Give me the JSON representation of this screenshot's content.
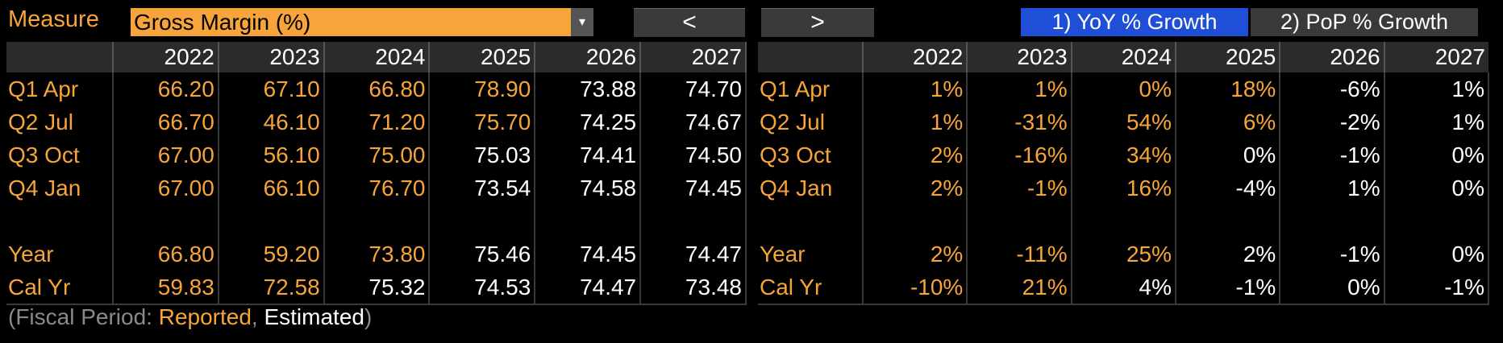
{
  "measure": {
    "label": "Measure",
    "selected": "Gross Margin (%)",
    "dropdown_arrow": "▾"
  },
  "nav": {
    "prev": "<",
    "next": ">"
  },
  "modes": {
    "yoy": "1) YoY % Growth",
    "pop": "2) PoP % Growth"
  },
  "colors": {
    "reported": "#f7a43a",
    "estimated": "#ffffff",
    "active_mode": "#1f4fd6"
  },
  "years": [
    "2022",
    "2023",
    "2024",
    "2025",
    "2026",
    "2027"
  ],
  "left_rows": [
    {
      "label": "Q1 Apr",
      "values": [
        "66.20",
        "67.10",
        "66.80",
        "78.90",
        "73.88",
        "74.70"
      ],
      "reported": 4
    },
    {
      "label": "Q2 Jul",
      "values": [
        "66.70",
        "46.10",
        "71.20",
        "75.70",
        "74.25",
        "74.67"
      ],
      "reported": 4
    },
    {
      "label": "Q3 Oct",
      "values": [
        "67.00",
        "56.10",
        "75.00",
        "75.03",
        "74.41",
        "74.50"
      ],
      "reported": 3
    },
    {
      "label": "Q4 Jan",
      "values": [
        "67.00",
        "66.10",
        "76.70",
        "73.54",
        "74.58",
        "74.45"
      ],
      "reported": 3
    },
    {
      "label": "",
      "values": [
        "",
        "",
        "",
        "",
        "",
        ""
      ],
      "reported": 0
    },
    {
      "label": "Year",
      "values": [
        "66.80",
        "59.20",
        "73.80",
        "75.46",
        "74.45",
        "74.47"
      ],
      "reported": 3
    },
    {
      "label": "Cal Yr",
      "values": [
        "59.83",
        "72.58",
        "75.32",
        "74.53",
        "74.47",
        "73.48"
      ],
      "reported": 2
    }
  ],
  "right_rows": [
    {
      "label": "Q1 Apr",
      "values": [
        "1%",
        "1%",
        "0%",
        "18%",
        "-6%",
        "1%"
      ],
      "reported": 4
    },
    {
      "label": "Q2 Jul",
      "values": [
        "1%",
        "-31%",
        "54%",
        "6%",
        "-2%",
        "1%"
      ],
      "reported": 4
    },
    {
      "label": "Q3 Oct",
      "values": [
        "2%",
        "-16%",
        "34%",
        "0%",
        "-1%",
        "0%"
      ],
      "reported": 3
    },
    {
      "label": "Q4 Jan",
      "values": [
        "2%",
        "-1%",
        "16%",
        "-4%",
        "1%",
        "0%"
      ],
      "reported": 3
    },
    {
      "label": "",
      "values": [
        "",
        "",
        "",
        "",
        "",
        ""
      ],
      "reported": 0
    },
    {
      "label": "Year",
      "values": [
        "2%",
        "-11%",
        "25%",
        "2%",
        "-1%",
        "0%"
      ],
      "reported": 3
    },
    {
      "label": "Cal Yr",
      "values": [
        "-10%",
        "21%",
        "4%",
        "-1%",
        "0%",
        "-1%"
      ],
      "reported": 2
    }
  ],
  "footer": {
    "prefix": "(Fiscal Period: ",
    "reported": "Reported",
    "sep": ", ",
    "estimated": "Estimated",
    "suffix": ")"
  }
}
